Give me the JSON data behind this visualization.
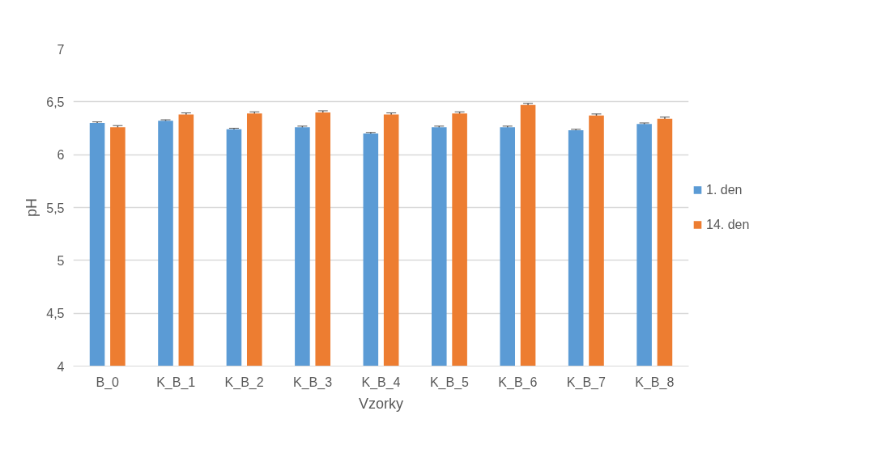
{
  "chart_data": {
    "type": "bar",
    "xlabel": "Vzorky",
    "ylabel": "pH",
    "categories": [
      "B_0",
      "K_B_1",
      "K_B_2",
      "K_B_3",
      "K_B_4",
      "K_B_5",
      "K_B_6",
      "K_B_7",
      "K_B_8"
    ],
    "series": [
      {
        "name": "1. den",
        "color": "#5b9bd5",
        "values": [
          6.3,
          6.32,
          6.24,
          6.26,
          6.2,
          6.26,
          6.26,
          6.23,
          6.29
        ],
        "errors": [
          0.01,
          0.01,
          0.01,
          0.01,
          0.01,
          0.01,
          0.01,
          0.01,
          0.01
        ]
      },
      {
        "name": "14. den",
        "color": "#ed7d31",
        "values": [
          6.26,
          6.38,
          6.39,
          6.4,
          6.38,
          6.39,
          6.47,
          6.37,
          6.34
        ],
        "errors": [
          0.015,
          0.015,
          0.015,
          0.015,
          0.015,
          0.015,
          0.015,
          0.015,
          0.015
        ]
      }
    ],
    "ylim": [
      4,
      7
    ],
    "yticks": [
      {
        "value": 4,
        "label": "4"
      },
      {
        "value": 4.5,
        "label": "4,5"
      },
      {
        "value": 5,
        "label": "5"
      },
      {
        "value": 5.5,
        "label": "5,5"
      },
      {
        "value": 6,
        "label": "6"
      },
      {
        "value": 6.5,
        "label": "6,5"
      },
      {
        "value": 7,
        "label": "7"
      }
    ],
    "grid": "y",
    "legend": "right"
  }
}
